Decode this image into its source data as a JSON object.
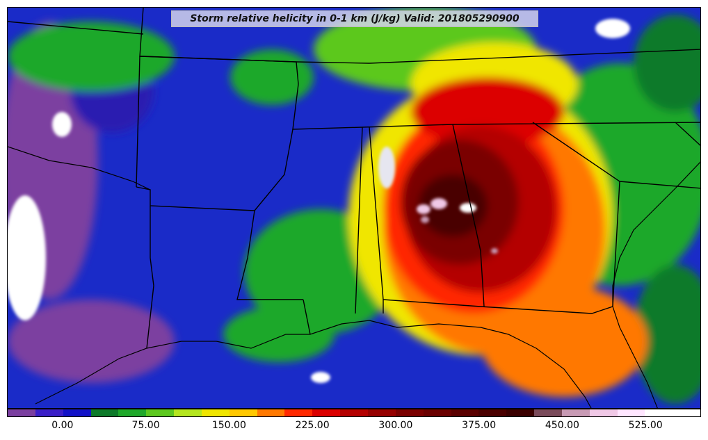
{
  "title": "Storm relative helicity in 0-1 km (J/kg) Valid: 201805290900",
  "colorbar": {
    "colors": [
      "#7b3fa0",
      "#3a1fc8",
      "#1212c8",
      "#0d7a2a",
      "#1fa82a",
      "#5cc81e",
      "#b4e61e",
      "#f0e600",
      "#ffc800",
      "#ff7800",
      "#ff2800",
      "#dc0000",
      "#b40000",
      "#960000",
      "#7a0000",
      "#6a0000",
      "#5a0000",
      "#4a0000",
      "#3a0000",
      "#7a4a5a",
      "#c89ab4",
      "#f0c8e6",
      "#ffe6ff",
      "#ffffff",
      "#ffffff"
    ],
    "tick_labels": [
      "0.00",
      "75.00",
      "150.00",
      "225.00",
      "300.00",
      "375.00",
      "450.00",
      "525.00"
    ],
    "tick_values": [
      0,
      75,
      150,
      225,
      300,
      375,
      450,
      525
    ],
    "range": [
      -50,
      575
    ]
  },
  "map": {
    "background_color": "#1a2bc8",
    "region": "Southeastern United States"
  }
}
